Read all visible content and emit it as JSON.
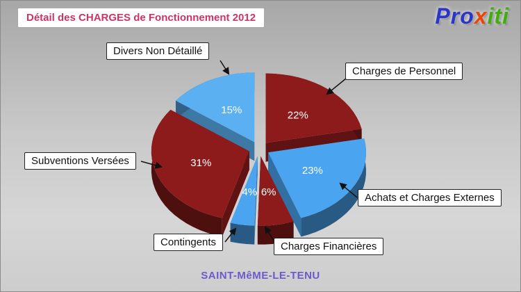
{
  "header": {
    "title": "Détail des CHARGES de Fonctionnement 2012",
    "title_color": "#cc3366",
    "logo_parts": [
      {
        "text": "Pro",
        "color": "#2b35c8"
      },
      {
        "text": "x",
        "color": "#e8450a"
      },
      {
        "text": "iti",
        "color": "#3fae0c"
      }
    ]
  },
  "footer": {
    "town": "SAINT-MêME-LE-TENU",
    "color": "#6a5acd"
  },
  "chart_data": {
    "type": "pie",
    "style": "3d-exploded",
    "title": "Détail des CHARGES de Fonctionnement 2012",
    "unit": "%",
    "legend_position": "callout-labels",
    "slices": [
      {
        "label": "Divers Non Détaillé",
        "value": 15,
        "pct_label": "15%",
        "color": "#5bb0f2"
      },
      {
        "label": "Charges de Personnel",
        "value": 22,
        "pct_label": "22%",
        "color": "#8e1b1b"
      },
      {
        "label": "Achats et Charges Externes",
        "value": 23,
        "pct_label": "23%",
        "color": "#4aa4ef"
      },
      {
        "label": "Charges Financières",
        "value": 6,
        "pct_label": "6%",
        "color": "#8e1b1b"
      },
      {
        "label": "Contingents",
        "value": 4,
        "pct_label": "4%",
        "color": "#4aa4ef"
      },
      {
        "label": "Subventions Versées",
        "value": 31,
        "pct_label": "31%",
        "color": "#8e1b1b"
      }
    ]
  }
}
